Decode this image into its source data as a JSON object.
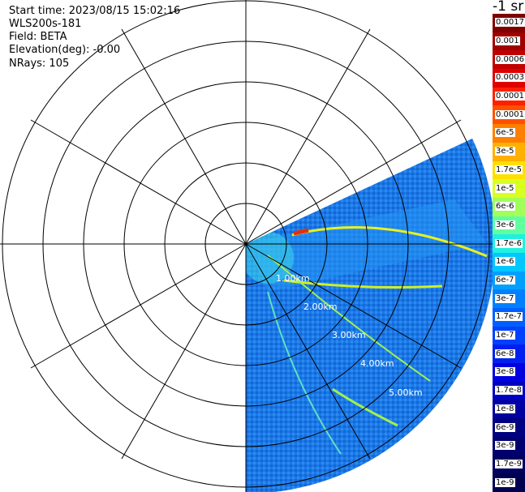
{
  "header": {
    "start_time": "Start time: 2023/08/15 15:02:16",
    "instrument": "WLS200s-181",
    "field": "Field: BETA",
    "elevation": "Elevation(deg): -0.00",
    "nrays": "NRays: 105"
  },
  "colorbar": {
    "unit": "-1 sr",
    "labels": [
      "0.0017",
      "0.001",
      "0.0006",
      "0.0003",
      "0.00017",
      "0.0001",
      "6e-5",
      "3e-5",
      "1.7e-5",
      "1e-5",
      "6e-6",
      "3e-6",
      "1.7e-6",
      "1e-6",
      "6e-7",
      "3e-7",
      "1.7e-7",
      "1e-7",
      "6e-8",
      "3e-8",
      "1.7e-8",
      "1e-8",
      "6e-9",
      "3e-9",
      "1.7e-9",
      "1e-9"
    ],
    "colors": [
      "#800000",
      "#a00000",
      "#c00000",
      "#e00000",
      "#ff2000",
      "#ff5000",
      "#ff8000",
      "#ffb000",
      "#ffe000",
      "#d8ff20",
      "#a0ff58",
      "#60ffa0",
      "#20f0e0",
      "#00c8ff",
      "#00a0ff",
      "#0080ff",
      "#0060ff",
      "#0040ff",
      "#0020f0",
      "#0000e0",
      "#0000c0",
      "#0000a0",
      "#000080",
      "#000070",
      "#000060",
      "#000050"
    ]
  },
  "plot": {
    "range_labels": [
      "1.00km",
      "2.00km",
      "3.00km",
      "4.00km",
      "5.00km"
    ],
    "sector_start_deg": 65,
    "sector_end_deg": 180,
    "background_color": "#1f7fe8"
  }
}
